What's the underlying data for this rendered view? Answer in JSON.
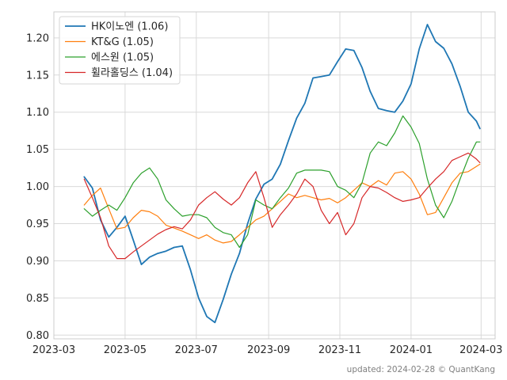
{
  "chart_data": {
    "type": "line",
    "title": "",
    "xlabel": "",
    "ylabel": "",
    "ylim": [
      0.795,
      1.235
    ],
    "xlim": [
      "2023-03-01",
      "2024-03-13"
    ],
    "x_ticks": [
      "2023-03",
      "2023-05",
      "2023-07",
      "2023-09",
      "2023-11",
      "2024-01",
      "2024-03"
    ],
    "y_ticks": [
      "0.80",
      "0.85",
      "0.90",
      "0.95",
      "1.00",
      "1.05",
      "1.10",
      "1.15",
      "1.20"
    ],
    "grid": true,
    "legend_position": "top-left",
    "footer": "updated: 2024-02-28 © QuantKang",
    "series": [
      {
        "name": "HK이노엔 (1.06)",
        "color": "#1f77b4",
        "points": [
          [
            "2023-03-27",
            1.013
          ],
          [
            "2023-04-03",
            0.998
          ],
          [
            "2023-04-10",
            0.955
          ],
          [
            "2023-04-17",
            0.932
          ],
          [
            "2023-04-24",
            0.945
          ],
          [
            "2023-05-01",
            0.96
          ],
          [
            "2023-05-08",
            0.928
          ],
          [
            "2023-05-15",
            0.895
          ],
          [
            "2023-05-22",
            0.905
          ],
          [
            "2023-05-29",
            0.91
          ],
          [
            "2023-06-05",
            0.913
          ],
          [
            "2023-06-12",
            0.918
          ],
          [
            "2023-06-19",
            0.92
          ],
          [
            "2023-06-26",
            0.888
          ],
          [
            "2023-07-03",
            0.85
          ],
          [
            "2023-07-10",
            0.825
          ],
          [
            "2023-07-17",
            0.817
          ],
          [
            "2023-07-24",
            0.848
          ],
          [
            "2023-07-31",
            0.882
          ],
          [
            "2023-08-07",
            0.91
          ],
          [
            "2023-08-14",
            0.95
          ],
          [
            "2023-08-21",
            0.983
          ],
          [
            "2023-08-28",
            1.003
          ],
          [
            "2023-09-04",
            1.01
          ],
          [
            "2023-09-11",
            1.03
          ],
          [
            "2023-09-18",
            1.062
          ],
          [
            "2023-09-25",
            1.092
          ],
          [
            "2023-10-02",
            1.112
          ],
          [
            "2023-10-09",
            1.146
          ],
          [
            "2023-10-16",
            1.148
          ],
          [
            "2023-10-23",
            1.15
          ],
          [
            "2023-10-30",
            1.168
          ],
          [
            "2023-11-06",
            1.185
          ],
          [
            "2023-11-13",
            1.183
          ],
          [
            "2023-11-20",
            1.16
          ],
          [
            "2023-11-27",
            1.128
          ],
          [
            "2023-12-04",
            1.105
          ],
          [
            "2023-12-11",
            1.102
          ],
          [
            "2023-12-18",
            1.1
          ],
          [
            "2023-12-25",
            1.115
          ],
          [
            "2024-01-01",
            1.138
          ],
          [
            "2024-01-08",
            1.185
          ],
          [
            "2024-01-15",
            1.218
          ],
          [
            "2024-01-22",
            1.195
          ],
          [
            "2024-01-29",
            1.186
          ],
          [
            "2024-02-05",
            1.165
          ],
          [
            "2024-02-12",
            1.135
          ],
          [
            "2024-02-19",
            1.1
          ],
          [
            "2024-02-26",
            1.088
          ],
          [
            "2024-02-29",
            1.078
          ]
        ]
      },
      {
        "name": "KT&G (1.05)",
        "color": "#ff7f0e",
        "points": [
          [
            "2023-03-27",
            0.975
          ],
          [
            "2023-04-03",
            0.988
          ],
          [
            "2023-04-10",
            0.998
          ],
          [
            "2023-04-17",
            0.97
          ],
          [
            "2023-04-24",
            0.943
          ],
          [
            "2023-05-01",
            0.945
          ],
          [
            "2023-05-08",
            0.958
          ],
          [
            "2023-05-15",
            0.968
          ],
          [
            "2023-05-22",
            0.966
          ],
          [
            "2023-05-29",
            0.96
          ],
          [
            "2023-06-05",
            0.948
          ],
          [
            "2023-06-12",
            0.944
          ],
          [
            "2023-06-19",
            0.94
          ],
          [
            "2023-06-26",
            0.935
          ],
          [
            "2023-07-03",
            0.93
          ],
          [
            "2023-07-10",
            0.935
          ],
          [
            "2023-07-17",
            0.928
          ],
          [
            "2023-07-24",
            0.924
          ],
          [
            "2023-07-31",
            0.926
          ],
          [
            "2023-08-07",
            0.935
          ],
          [
            "2023-08-14",
            0.945
          ],
          [
            "2023-08-21",
            0.955
          ],
          [
            "2023-08-28",
            0.96
          ],
          [
            "2023-09-04",
            0.97
          ],
          [
            "2023-09-11",
            0.98
          ],
          [
            "2023-09-18",
            0.99
          ],
          [
            "2023-09-25",
            0.985
          ],
          [
            "2023-10-02",
            0.988
          ],
          [
            "2023-10-09",
            0.985
          ],
          [
            "2023-10-16",
            0.982
          ],
          [
            "2023-10-23",
            0.984
          ],
          [
            "2023-10-30",
            0.978
          ],
          [
            "2023-11-06",
            0.985
          ],
          [
            "2023-11-13",
            0.995
          ],
          [
            "2023-11-20",
            1.005
          ],
          [
            "2023-11-27",
            1.0
          ],
          [
            "2023-12-04",
            1.008
          ],
          [
            "2023-12-11",
            1.002
          ],
          [
            "2023-12-18",
            1.018
          ],
          [
            "2023-12-25",
            1.02
          ],
          [
            "2024-01-01",
            1.01
          ],
          [
            "2024-01-08",
            0.99
          ],
          [
            "2024-01-15",
            0.962
          ],
          [
            "2024-01-22",
            0.965
          ],
          [
            "2024-01-29",
            0.985
          ],
          [
            "2024-02-05",
            1.005
          ],
          [
            "2024-02-12",
            1.018
          ],
          [
            "2024-02-19",
            1.02
          ],
          [
            "2024-02-26",
            1.027
          ],
          [
            "2024-02-29",
            1.03
          ]
        ]
      },
      {
        "name": "에스원 (1.05)",
        "color": "#2ca02c",
        "points": [
          [
            "2023-03-27",
            0.97
          ],
          [
            "2023-04-03",
            0.96
          ],
          [
            "2023-04-10",
            0.968
          ],
          [
            "2023-04-17",
            0.975
          ],
          [
            "2023-04-24",
            0.968
          ],
          [
            "2023-05-01",
            0.985
          ],
          [
            "2023-05-08",
            1.005
          ],
          [
            "2023-05-15",
            1.018
          ],
          [
            "2023-05-22",
            1.025
          ],
          [
            "2023-05-29",
            1.01
          ],
          [
            "2023-06-05",
            0.982
          ],
          [
            "2023-06-12",
            0.97
          ],
          [
            "2023-06-19",
            0.96
          ],
          [
            "2023-06-26",
            0.962
          ],
          [
            "2023-07-03",
            0.962
          ],
          [
            "2023-07-10",
            0.958
          ],
          [
            "2023-07-17",
            0.945
          ],
          [
            "2023-07-24",
            0.938
          ],
          [
            "2023-07-31",
            0.935
          ],
          [
            "2023-08-07",
            0.918
          ],
          [
            "2023-08-14",
            0.935
          ],
          [
            "2023-08-21",
            0.982
          ],
          [
            "2023-08-28",
            0.975
          ],
          [
            "2023-09-04",
            0.97
          ],
          [
            "2023-09-11",
            0.985
          ],
          [
            "2023-09-18",
            0.998
          ],
          [
            "2023-09-25",
            1.018
          ],
          [
            "2023-10-02",
            1.022
          ],
          [
            "2023-10-09",
            1.022
          ],
          [
            "2023-10-16",
            1.022
          ],
          [
            "2023-10-23",
            1.02
          ],
          [
            "2023-10-30",
            1.0
          ],
          [
            "2023-11-06",
            0.995
          ],
          [
            "2023-11-13",
            0.985
          ],
          [
            "2023-11-20",
            1.005
          ],
          [
            "2023-11-27",
            1.045
          ],
          [
            "2023-12-04",
            1.06
          ],
          [
            "2023-12-11",
            1.055
          ],
          [
            "2023-12-18",
            1.072
          ],
          [
            "2023-12-25",
            1.095
          ],
          [
            "2024-01-01",
            1.08
          ],
          [
            "2024-01-08",
            1.058
          ],
          [
            "2024-01-15",
            1.01
          ],
          [
            "2024-01-22",
            0.975
          ],
          [
            "2024-01-29",
            0.958
          ],
          [
            "2024-02-05",
            0.98
          ],
          [
            "2024-02-12",
            1.01
          ],
          [
            "2024-02-19",
            1.038
          ],
          [
            "2024-02-26",
            1.06
          ],
          [
            "2024-02-29",
            1.06
          ]
        ]
      },
      {
        "name": "휠라홀딩스 (1.04)",
        "color": "#d62728",
        "points": [
          [
            "2023-03-27",
            1.01
          ],
          [
            "2023-04-03",
            0.985
          ],
          [
            "2023-04-10",
            0.958
          ],
          [
            "2023-04-17",
            0.92
          ],
          [
            "2023-04-24",
            0.903
          ],
          [
            "2023-05-01",
            0.903
          ],
          [
            "2023-05-08",
            0.912
          ],
          [
            "2023-05-15",
            0.92
          ],
          [
            "2023-05-22",
            0.928
          ],
          [
            "2023-05-29",
            0.936
          ],
          [
            "2023-06-05",
            0.942
          ],
          [
            "2023-06-12",
            0.946
          ],
          [
            "2023-06-19",
            0.943
          ],
          [
            "2023-06-26",
            0.955
          ],
          [
            "2023-07-03",
            0.975
          ],
          [
            "2023-07-10",
            0.985
          ],
          [
            "2023-07-17",
            0.993
          ],
          [
            "2023-07-24",
            0.983
          ],
          [
            "2023-07-31",
            0.975
          ],
          [
            "2023-08-07",
            0.985
          ],
          [
            "2023-08-14",
            1.005
          ],
          [
            "2023-08-21",
            1.02
          ],
          [
            "2023-08-28",
            0.985
          ],
          [
            "2023-09-04",
            0.945
          ],
          [
            "2023-09-11",
            0.962
          ],
          [
            "2023-09-18",
            0.975
          ],
          [
            "2023-09-25",
            0.99
          ],
          [
            "2023-10-02",
            1.01
          ],
          [
            "2023-10-09",
            1.0
          ],
          [
            "2023-10-16",
            0.968
          ],
          [
            "2023-10-23",
            0.95
          ],
          [
            "2023-10-30",
            0.965
          ],
          [
            "2023-11-06",
            0.935
          ],
          [
            "2023-11-13",
            0.95
          ],
          [
            "2023-11-20",
            0.985
          ],
          [
            "2023-11-27",
            1.0
          ],
          [
            "2023-12-04",
            0.998
          ],
          [
            "2023-12-11",
            0.992
          ],
          [
            "2023-12-18",
            0.985
          ],
          [
            "2023-12-25",
            0.98
          ],
          [
            "2024-01-01",
            0.982
          ],
          [
            "2024-01-08",
            0.985
          ],
          [
            "2024-01-15",
            0.998
          ],
          [
            "2024-01-22",
            1.01
          ],
          [
            "2024-01-29",
            1.02
          ],
          [
            "2024-02-05",
            1.035
          ],
          [
            "2024-02-12",
            1.04
          ],
          [
            "2024-02-19",
            1.045
          ],
          [
            "2024-02-26",
            1.037
          ],
          [
            "2024-02-29",
            1.032
          ]
        ]
      }
    ]
  }
}
